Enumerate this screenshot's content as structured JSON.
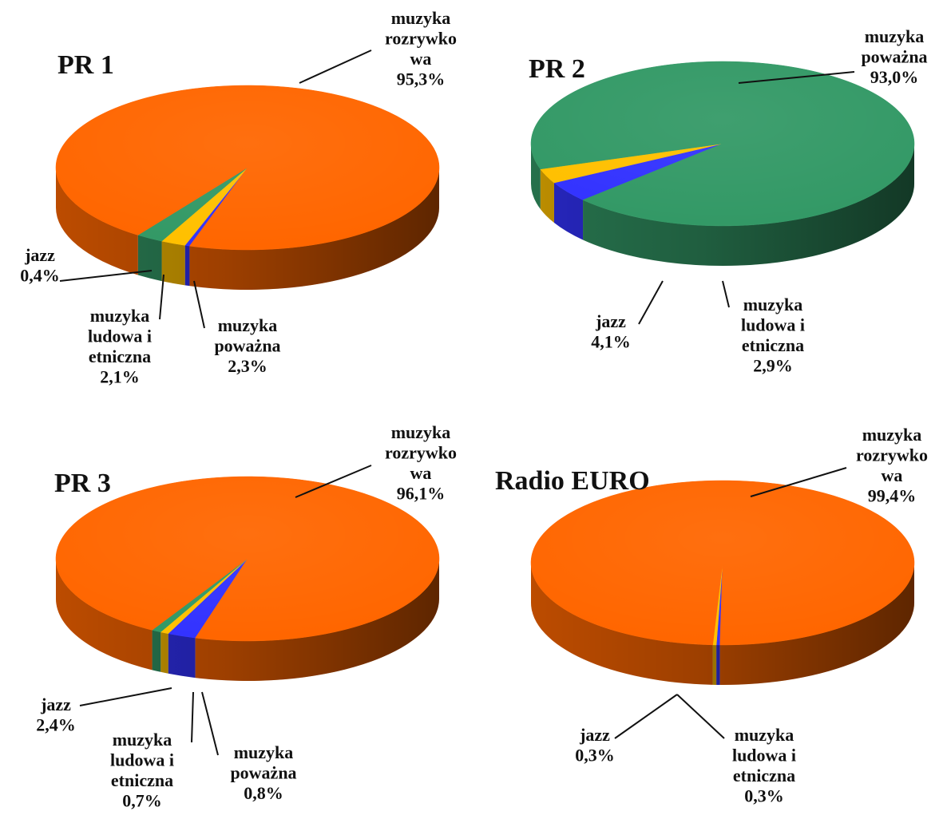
{
  "colors": {
    "rozrywkowa": "#FF6600",
    "powazna": "#339966",
    "ludowa": "#FFC000",
    "jazz": "#3333FF"
  },
  "chart_data": [
    {
      "type": "pie",
      "title": "PR 1",
      "slices": [
        {
          "key": "jazz",
          "lines": [
            "jazz",
            "0,4%"
          ],
          "value": 0.4
        },
        {
          "key": "ludowa",
          "lines": [
            "muzyka",
            "ludowa i",
            "etniczna",
            "2,1%"
          ],
          "value": 2.1
        },
        {
          "key": "powazna",
          "lines": [
            "muzyka",
            "poważna",
            "2,3%"
          ],
          "value": 2.3
        },
        {
          "key": "rozrywkowa",
          "lines": [
            "muzyka",
            "rozrywko",
            "wa",
            "95,3%"
          ],
          "value": 95.3
        }
      ]
    },
    {
      "type": "pie",
      "title": "PR 2",
      "slices": [
        {
          "key": "jazz",
          "lines": [
            "jazz",
            "4,1%"
          ],
          "value": 4.1
        },
        {
          "key": "ludowa",
          "lines": [
            "muzyka",
            "ludowa i",
            "etniczna",
            "2,9%"
          ],
          "value": 2.9
        },
        {
          "key": "powazna",
          "lines": [
            "muzyka",
            "poważna",
            "93,0%"
          ],
          "value": 93.0
        }
      ]
    },
    {
      "type": "pie",
      "title": "PR 3",
      "slices": [
        {
          "key": "jazz",
          "lines": [
            "jazz",
            "2,4%"
          ],
          "value": 2.4
        },
        {
          "key": "ludowa",
          "lines": [
            "muzyka",
            "ludowa i",
            "etniczna",
            "0,7%"
          ],
          "value": 0.7
        },
        {
          "key": "powazna",
          "lines": [
            "muzyka",
            "poważna",
            "0,8%"
          ],
          "value": 0.8
        },
        {
          "key": "rozrywkowa",
          "lines": [
            "muzyka",
            "rozrywko",
            "wa",
            "96,1%"
          ],
          "value": 96.1
        }
      ]
    },
    {
      "type": "pie",
      "title": "Radio EURO",
      "slices": [
        {
          "key": "jazz",
          "lines": [
            "jazz",
            "0,3%"
          ],
          "value": 0.3
        },
        {
          "key": "ludowa",
          "lines": [
            "muzyka",
            "ludowa i",
            "etniczna",
            "0,3%"
          ],
          "value": 0.3
        },
        {
          "key": "rozrywkowa",
          "lines": [
            "muzyka",
            "rozrywko",
            "wa",
            "99,4%"
          ],
          "value": 99.4
        }
      ]
    }
  ]
}
